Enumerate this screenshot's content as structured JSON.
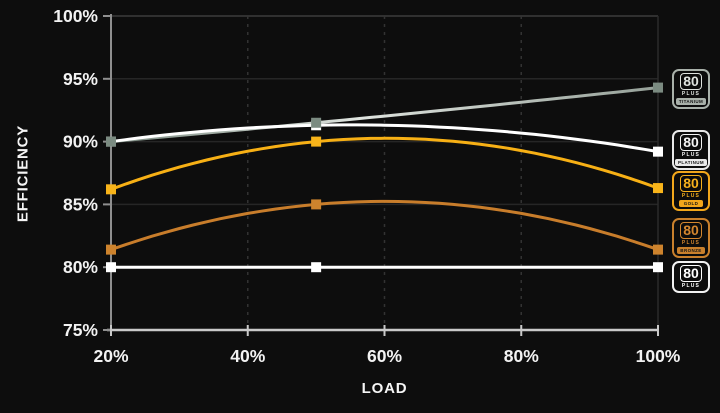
{
  "chart_data": {
    "type": "line",
    "title": "",
    "xlabel": "LOAD",
    "ylabel": "EFFICIENCY",
    "x": [
      20,
      50,
      100
    ],
    "xticks": [
      20,
      40,
      60,
      80,
      100
    ],
    "xtick_labels": [
      "20%",
      "40%",
      "60%",
      "80%",
      "100%"
    ],
    "ytick_labels": [
      "75%",
      "80%",
      "85%",
      "90%",
      "95%",
      "100%"
    ],
    "yticks": [
      75,
      80,
      85,
      90,
      95,
      100
    ],
    "xlim": [
      20,
      100
    ],
    "ylim": [
      75,
      100
    ],
    "grid": {
      "horizontal": "solid-faint",
      "vertical_dashed_at": [
        40,
        60,
        80
      ]
    },
    "legend_position": "right",
    "series": [
      {
        "name": "80 Plus Titanium",
        "values": [
          90,
          91.5,
          94.3
        ],
        "color": "#9aa49c",
        "color_start": "#73permanent",
        "marker_color": "#7b8b81",
        "marker": "square"
      },
      {
        "name": "80 Plus Platinum",
        "values": [
          90,
          91.3,
          89.2
        ],
        "color": "#ffffff",
        "marker_color": "#ffffff",
        "marker": "square"
      },
      {
        "name": "80 Plus Gold",
        "values": [
          86.2,
          90,
          86.3
        ],
        "color": "#f7b015",
        "marker_color": "#f8b41a",
        "marker": "square"
      },
      {
        "name": "80 Plus Bronze",
        "values": [
          81.4,
          85,
          81.4
        ],
        "color": "#c87d2b",
        "marker_color": "#cd832d",
        "marker": "square"
      },
      {
        "name": "80 Plus",
        "values": [
          80,
          80,
          80
        ],
        "color": "#ffffff",
        "marker_color": "#ffffff",
        "marker": "square"
      }
    ],
    "colors": {
      "background": "#0d0d0d",
      "axis_text": "#f2f2f2",
      "y_axis_line": "#8f8f8f",
      "x_axis_line": "#c9c9c9",
      "gridline": "#262626",
      "gridline_top": "#3d3d3d",
      "gridline_dashed": "#323232",
      "right_edge": "#2b2b2b"
    }
  },
  "legend": {
    "items": [
      {
        "number": "80",
        "plus": "PLUS",
        "tier": "TITANIUM",
        "color": "#a9b1aa",
        "text_color": "#dfe3df",
        "band_text_color": "#141414"
      },
      {
        "number": "80",
        "plus": "PLUS",
        "tier": "PLATINUM",
        "color": "#e9e9e9",
        "text_color": "#f4f4f4",
        "band_text_color": "#141414"
      },
      {
        "number": "80",
        "plus": "PLUS",
        "tier": "GOLD",
        "color": "#f2a71b",
        "text_color": "#f6b01c",
        "band_text_color": "#141414"
      },
      {
        "number": "80",
        "plus": "PLUS",
        "tier": "BRONZE",
        "color": "#c9802c",
        "text_color": "#d3862e",
        "band_text_color": "#141414"
      },
      {
        "number": "80",
        "plus": "PLUS",
        "tier": "",
        "color": "#f2f2f2",
        "text_color": "#ffffff",
        "band_text_color": "#141414"
      }
    ]
  }
}
